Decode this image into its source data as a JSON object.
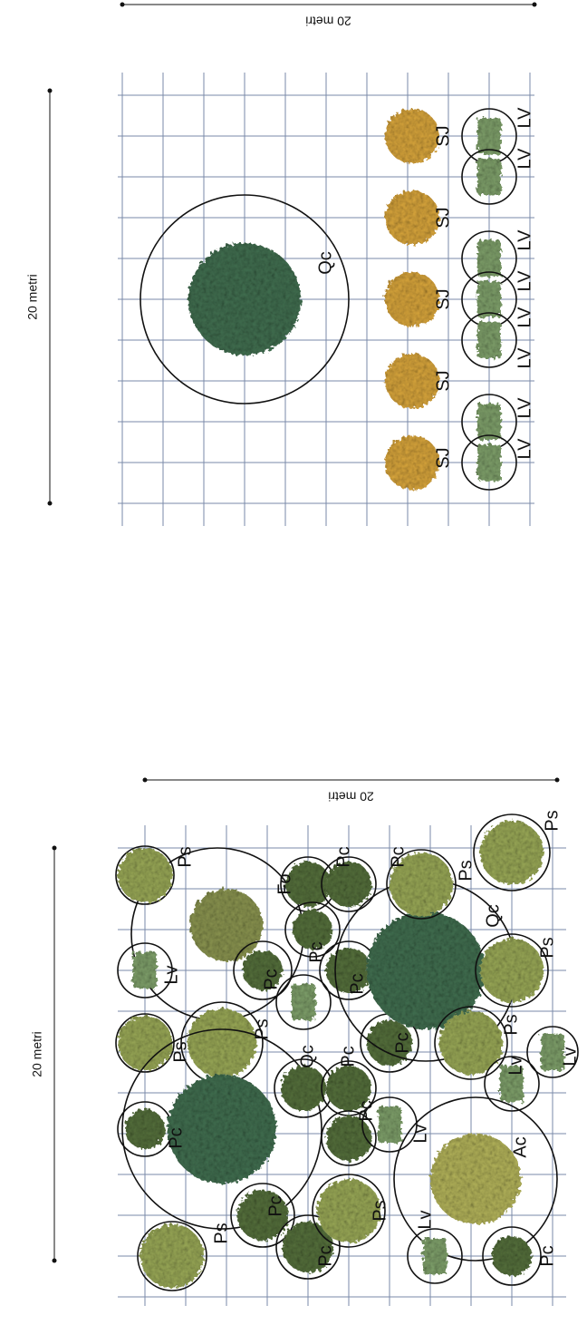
{
  "plans": [
    {
      "dimension_labels": [
        "20 metri",
        "20 metri"
      ],
      "labels": [
        "Qc",
        "SJ",
        "SJ",
        "SJ",
        "SJ",
        "SJ",
        "LV",
        "LV",
        "LV",
        "LV",
        "LV",
        "LV",
        "LV",
        "LV"
      ]
    },
    {
      "dimension_labels": [
        "20 metri",
        "20 metri"
      ],
      "labels": [
        "Ps",
        "Lv",
        "Ps",
        "Ps",
        "Pc",
        "Ps",
        "Pc",
        "Pc",
        "Ps",
        "Fo",
        "Pc",
        "Pc",
        "Pc",
        "Pc",
        "Qc",
        "Pc",
        "Pc",
        "Pc",
        "Lv",
        "Qc",
        "Ps",
        "Pc",
        "Ps",
        "Ps",
        "Ps",
        "Lv",
        "Lv",
        "Ac",
        "Lv",
        "Pc"
      ]
    }
  ]
}
